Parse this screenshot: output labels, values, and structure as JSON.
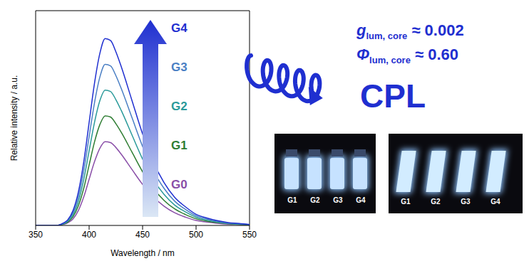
{
  "chart_data": {
    "type": "line",
    "xlabel": "Wavelength / nm",
    "ylabel": "Relative intensity / a.u.",
    "x": [
      350,
      360,
      370,
      375,
      380,
      385,
      390,
      395,
      400,
      405,
      410,
      415,
      420,
      425,
      430,
      440,
      450,
      460,
      470,
      480,
      490,
      500,
      510,
      520,
      530,
      540,
      550
    ],
    "series": [
      {
        "name": "G0",
        "color": "#8a4fa8",
        "values": [
          0,
          0,
          0,
          0.004,
          0.012,
          0.031,
          0.07,
          0.133,
          0.215,
          0.296,
          0.359,
          0.39,
          0.386,
          0.363,
          0.332,
          0.261,
          0.191,
          0.133,
          0.09,
          0.059,
          0.039,
          0.023,
          0.016,
          0.01,
          0.006,
          0.004,
          0.002
        ]
      },
      {
        "name": "G1",
        "color": "#2e7d32",
        "values": [
          0,
          0,
          0,
          0.005,
          0.015,
          0.041,
          0.092,
          0.173,
          0.281,
          0.388,
          0.469,
          0.51,
          0.505,
          0.474,
          0.434,
          0.342,
          0.25,
          0.173,
          0.117,
          0.077,
          0.051,
          0.031,
          0.02,
          0.013,
          0.008,
          0.005,
          0.003
        ]
      },
      {
        "name": "G2",
        "color": "#2a9a9a",
        "values": [
          0,
          0,
          0,
          0.006,
          0.019,
          0.05,
          0.113,
          0.214,
          0.347,
          0.479,
          0.58,
          0.63,
          0.624,
          0.586,
          0.536,
          0.422,
          0.309,
          0.214,
          0.145,
          0.095,
          0.063,
          0.038,
          0.025,
          0.016,
          0.009,
          0.006,
          0.003
        ]
      },
      {
        "name": "G3",
        "color": "#4a7fc4",
        "values": [
          0,
          0,
          0,
          0.008,
          0.023,
          0.06,
          0.135,
          0.255,
          0.413,
          0.57,
          0.69,
          0.75,
          0.743,
          0.698,
          0.638,
          0.503,
          0.368,
          0.255,
          0.173,
          0.113,
          0.075,
          0.045,
          0.03,
          0.019,
          0.011,
          0.008,
          0.004
        ]
      },
      {
        "name": "G4",
        "color": "#1f2fd0",
        "values": [
          0,
          0,
          0,
          0.009,
          0.026,
          0.07,
          0.157,
          0.296,
          0.479,
          0.661,
          0.8,
          0.87,
          0.861,
          0.809,
          0.74,
          0.583,
          0.426,
          0.296,
          0.2,
          0.131,
          0.087,
          0.052,
          0.035,
          0.022,
          0.013,
          0.009,
          0.004
        ]
      }
    ],
    "xlim": [
      350,
      550
    ],
    "xticks": [
      350,
      400,
      450,
      500,
      550
    ],
    "ylim": [
      0,
      1
    ],
    "yticks": [],
    "tick_labels": "x",
    "annotations": [
      {
        "symbol": "g",
        "subscript": "lum, core",
        "text": "≈ 0.002"
      },
      {
        "symbol": "Φ",
        "subscript": "lum, core",
        "text": "≈ 0.60"
      },
      {
        "text": "CPL"
      }
    ],
    "photos": [
      {
        "labels": [
          "G1",
          "G2",
          "G3",
          "G4"
        ]
      },
      {
        "labels": [
          "G1",
          "G2",
          "G3",
          "G4"
        ]
      }
    ]
  }
}
